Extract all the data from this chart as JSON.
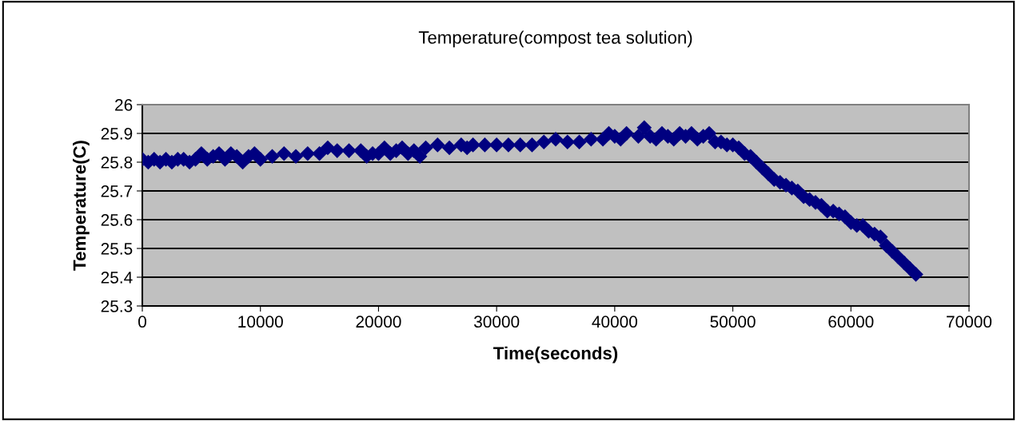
{
  "chart_data": {
    "type": "scatter",
    "title": "Temperature(compost tea solution)",
    "xlabel": "Time(seconds)",
    "ylabel": "Temperature(C)",
    "series": [
      {
        "color": "#000080",
        "x": [
          0,
          500,
          1000,
          1500,
          2000,
          2500,
          3000,
          3500,
          4000,
          4500,
          5000,
          5500,
          6000,
          6500,
          7000,
          7500,
          8000,
          8500,
          9000,
          9500,
          10000,
          11000,
          12000,
          13000,
          14000,
          15000,
          15700,
          16500,
          17500,
          18500,
          19000,
          19500,
          20000,
          20500,
          21000,
          21500,
          22000,
          22500,
          23000,
          23500,
          24000,
          25000,
          26000,
          27000,
          27500,
          28000,
          29000,
          30000,
          31000,
          32000,
          33000,
          34000,
          35000,
          36000,
          37000,
          38000,
          39000,
          39500,
          40000,
          40500,
          41000,
          42000,
          42500,
          43000,
          43500,
          44000,
          44500,
          45000,
          45500,
          46000,
          46500,
          47000,
          47500,
          48000,
          48500,
          49000,
          49500,
          50000,
          50500,
          51000,
          51500,
          52000,
          52500,
          53000,
          53500,
          54000,
          54500,
          55000,
          55500,
          56000,
          56500,
          57000,
          57500,
          58000,
          58500,
          59000,
          59500,
          60000,
          60500,
          61000,
          61500,
          62000,
          62500,
          63000,
          63500,
          64000,
          64500,
          65000,
          65500
        ],
        "values": [
          25.81,
          25.8,
          25.81,
          25.8,
          25.81,
          25.8,
          25.81,
          25.81,
          25.8,
          25.81,
          25.83,
          25.81,
          25.82,
          25.83,
          25.81,
          25.83,
          25.82,
          25.8,
          25.82,
          25.83,
          25.81,
          25.82,
          25.83,
          25.82,
          25.83,
          25.83,
          25.85,
          25.84,
          25.84,
          25.84,
          25.82,
          25.83,
          25.83,
          25.85,
          25.83,
          25.84,
          25.85,
          25.83,
          25.84,
          25.82,
          25.85,
          25.86,
          25.85,
          25.86,
          25.85,
          25.86,
          25.86,
          25.86,
          25.86,
          25.86,
          25.86,
          25.87,
          25.88,
          25.87,
          25.87,
          25.88,
          25.88,
          25.9,
          25.89,
          25.88,
          25.9,
          25.89,
          25.92,
          25.89,
          25.88,
          25.9,
          25.89,
          25.88,
          25.9,
          25.89,
          25.9,
          25.88,
          25.89,
          25.9,
          25.87,
          25.87,
          25.86,
          25.86,
          25.85,
          25.83,
          25.82,
          25.8,
          25.78,
          25.76,
          25.74,
          25.73,
          25.72,
          25.71,
          25.7,
          25.68,
          25.67,
          25.66,
          25.65,
          25.63,
          25.63,
          25.62,
          25.61,
          25.59,
          25.58,
          25.58,
          25.56,
          25.55,
          25.54,
          25.51,
          25.49,
          25.47,
          25.45,
          25.43,
          25.41
        ]
      }
    ],
    "marker": "diamond",
    "xlim": [
      0,
      70000
    ],
    "xticks": [
      0,
      10000,
      20000,
      30000,
      40000,
      50000,
      60000,
      70000
    ],
    "ylim": [
      25.3,
      26
    ],
    "yticks": [
      {
        "value": 25.3,
        "label": "25.3"
      },
      {
        "value": 25.4,
        "label": "25.4"
      },
      {
        "value": 25.5,
        "label": "25.5"
      },
      {
        "value": 25.6,
        "label": "25.6"
      },
      {
        "value": 25.7,
        "label": "25.7"
      },
      {
        "value": 25.8,
        "label": "25.8"
      },
      {
        "value": 25.9,
        "label": "25.9"
      },
      {
        "value": 26,
        "label": "26"
      }
    ],
    "grid": "y",
    "legend": false
  }
}
